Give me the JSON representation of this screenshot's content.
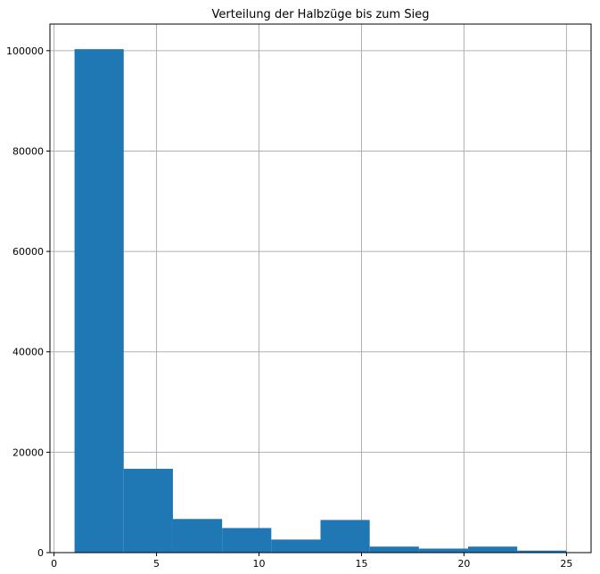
{
  "chart_data": {
    "type": "bar",
    "title": "Verteilung der Halbzüge bis zum Sieg",
    "xlabel": "",
    "ylabel": "",
    "bins": [
      {
        "x0": 1.0,
        "x1": 3.4,
        "value": 100300
      },
      {
        "x0": 3.4,
        "x1": 5.8,
        "value": 16700
      },
      {
        "x0": 5.8,
        "x1": 8.2,
        "value": 6700
      },
      {
        "x0": 8.2,
        "x1": 10.6,
        "value": 4900
      },
      {
        "x0": 10.6,
        "x1": 13.0,
        "value": 2600
      },
      {
        "x0": 13.0,
        "x1": 15.4,
        "value": 6500
      },
      {
        "x0": 15.4,
        "x1": 17.8,
        "value": 1200
      },
      {
        "x0": 17.8,
        "x1": 20.2,
        "value": 800
      },
      {
        "x0": 20.2,
        "x1": 22.6,
        "value": 1200
      },
      {
        "x0": 22.6,
        "x1": 25.0,
        "value": 400
      }
    ],
    "xlim": [
      -0.2,
      26.2
    ],
    "ylim": [
      0,
      105300
    ],
    "xticks": [
      0,
      5,
      10,
      15,
      20,
      25
    ],
    "yticks": [
      0,
      20000,
      40000,
      60000,
      80000,
      100000
    ],
    "grid": true,
    "bar_color": "#1f77b4",
    "grid_color": "#b0b0b0"
  }
}
